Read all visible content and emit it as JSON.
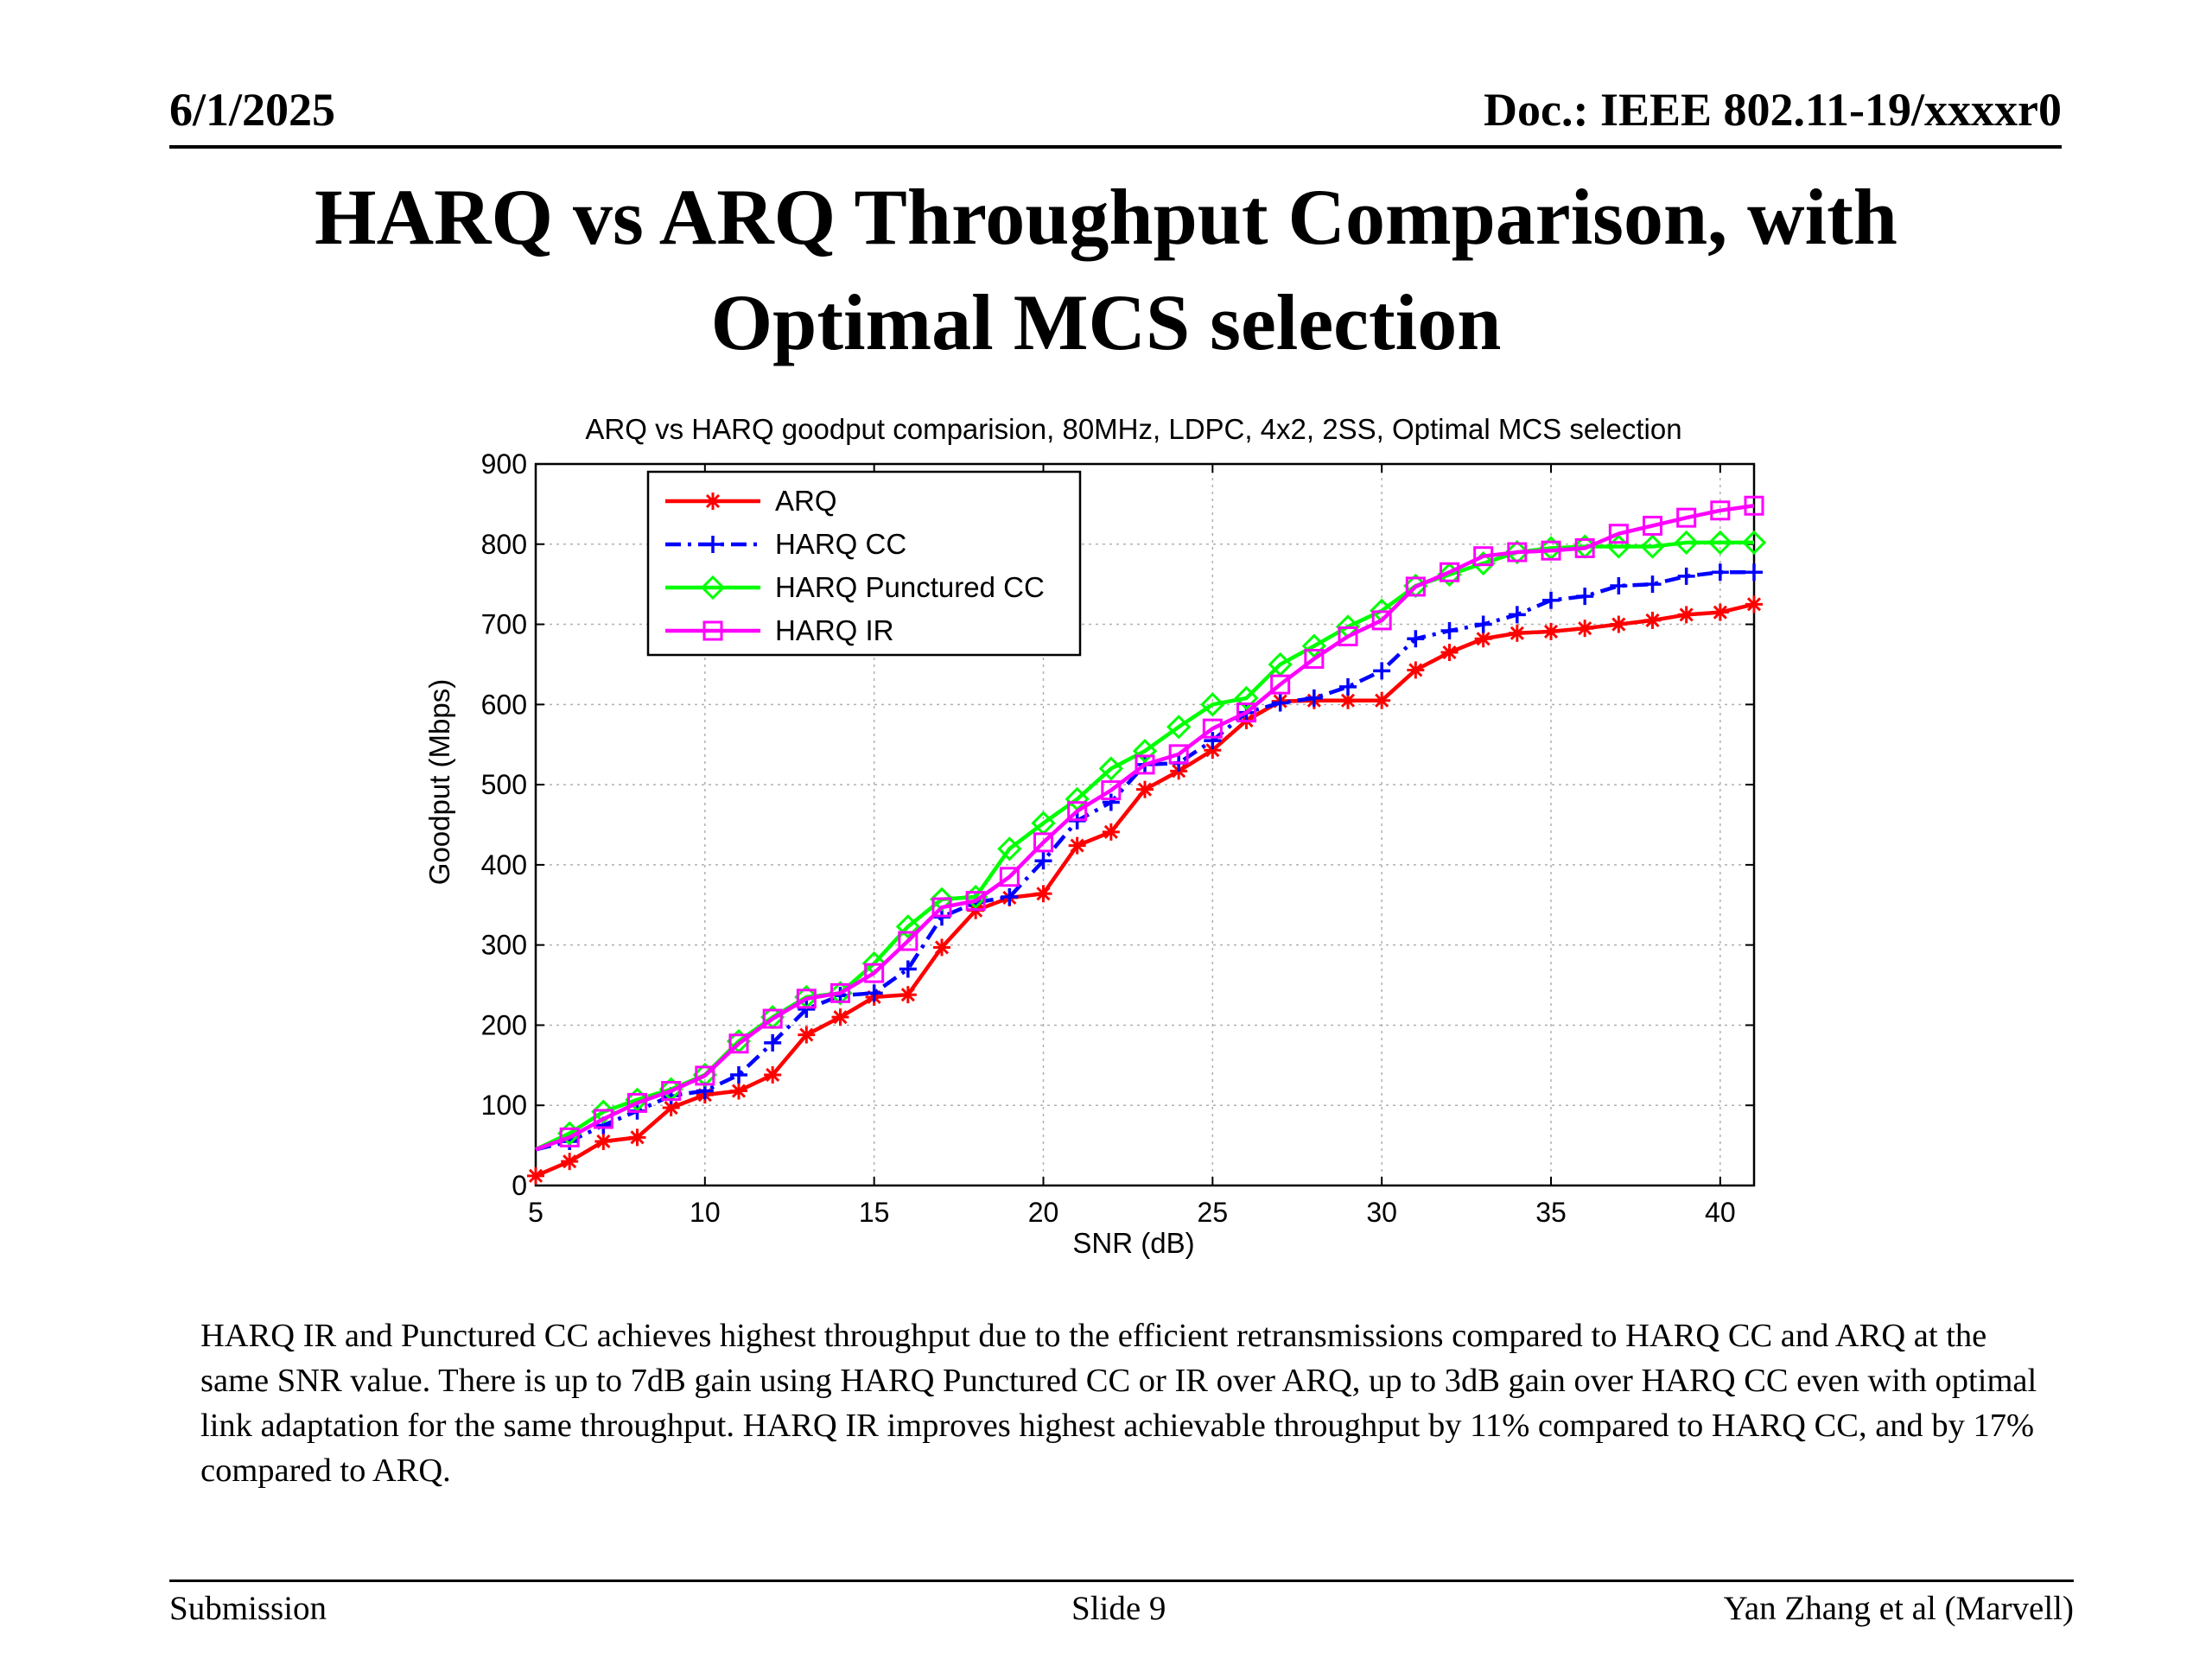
{
  "header": {
    "date": "6/1/2025",
    "doc": "Doc.: IEEE 802.11-19/xxxxr0"
  },
  "slide_title": {
    "line1": "HARQ vs ARQ Throughput Comparison, with",
    "line2": "Optimal MCS selection"
  },
  "caption": "HARQ IR and Punctured CC achieves highest throughput due to the efficient retransmissions compared to HARQ CC and ARQ at the same SNR value. There is up to 7dB gain using HARQ Punctured CC or IR over ARQ, up to 3dB gain over HARQ CC even with optimal link adaptation for the same throughput. HARQ IR improves highest achievable throughput by 11% compared to HARQ CC, and by 17% compared to ARQ.",
  "footer": {
    "left": "Submission",
    "center": "Slide 9",
    "right": "Yan Zhang et al (Marvell)"
  },
  "chart_data": {
    "type": "line",
    "title": "ARQ vs HARQ goodput comparision, 80MHz, LDPC, 4x2, 2SS, Optimal MCS selection",
    "xlabel": "SNR (dB)",
    "ylabel": "Goodput (Mbps)",
    "xlim": [
      5,
      41
    ],
    "ylim": [
      0,
      900
    ],
    "xticks": [
      5,
      10,
      15,
      20,
      25,
      30,
      35,
      40
    ],
    "yticks": [
      0,
      100,
      200,
      300,
      400,
      500,
      600,
      700,
      800,
      900
    ],
    "grid": true,
    "legend_position": "top-left",
    "x": [
      5,
      6,
      7,
      8,
      9,
      10,
      11,
      12,
      13,
      14,
      15,
      16,
      17,
      18,
      19,
      20,
      21,
      22,
      23,
      24,
      25,
      26,
      27,
      28,
      29,
      30,
      31,
      32,
      33,
      34,
      35,
      36,
      37,
      38,
      39,
      40,
      41
    ],
    "series": [
      {
        "name": "ARQ",
        "color": "#ff0000",
        "dash": "solid",
        "marker": "star",
        "values": [
          12,
          30,
          55,
          60,
          97,
          113,
          118,
          138,
          188,
          210,
          235,
          238,
          297,
          343,
          359,
          364,
          424,
          441,
          494,
          517,
          543,
          580,
          604,
          605,
          605,
          605,
          643,
          665,
          682,
          689,
          691,
          695,
          700,
          705,
          712,
          715,
          725
        ]
      },
      {
        "name": "HARQ CC",
        "color": "#0000ff",
        "dash": "dashdot",
        "marker": "plus",
        "values": [
          45,
          55,
          75,
          93,
          112,
          118,
          138,
          178,
          220,
          237,
          240,
          270,
          335,
          353,
          360,
          405,
          455,
          478,
          525,
          527,
          555,
          590,
          602,
          608,
          622,
          642,
          682,
          692,
          700,
          712,
          730,
          735,
          748,
          750,
          760,
          765,
          765
        ]
      },
      {
        "name": "HARQ Punctured CC",
        "color": "#00ff00",
        "dash": "solid",
        "marker": "diamond",
        "values": [
          45,
          65,
          92,
          107,
          120,
          138,
          180,
          210,
          235,
          240,
          277,
          323,
          357,
          360,
          420,
          452,
          482,
          520,
          542,
          572,
          600,
          608,
          650,
          673,
          697,
          717,
          748,
          762,
          776,
          790,
          795,
          797,
          797,
          797,
          802,
          802,
          802
        ]
      },
      {
        "name": "HARQ IR",
        "color": "#ff00ff",
        "dash": "solid",
        "marker": "square",
        "values": [
          45,
          60,
          83,
          103,
          118,
          137,
          177,
          208,
          233,
          240,
          265,
          305,
          347,
          355,
          385,
          428,
          467,
          493,
          525,
          538,
          570,
          590,
          625,
          657,
          685,
          705,
          747,
          765,
          785,
          790,
          792,
          795,
          813,
          823,
          833,
          842,
          848
        ]
      }
    ]
  }
}
